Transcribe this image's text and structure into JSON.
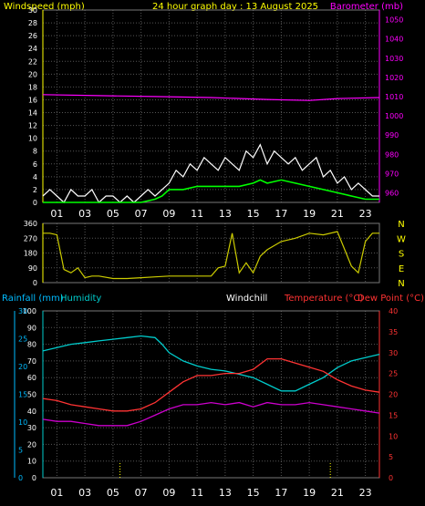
{
  "header": {
    "left_title": "Windspeed (mph)",
    "center_title": "24 hour graph day : 13 August 2025",
    "right_title": "Barometer (mb)"
  },
  "colors": {
    "windspeed": "#ffffff",
    "wind_avg": "#00ff00",
    "barometer": "#ff00ff",
    "direction": "#cccc00",
    "humidity": "#00cccc",
    "temperature": "#ff3333",
    "dewpoint": "#cc00cc",
    "rainfall_axis": "#00bbff",
    "yellow_text": "#ffff00",
    "grid": "#555555"
  },
  "chart_data": [
    {
      "type": "line",
      "id": "wind-baro",
      "x_ticks": [
        "01",
        "03",
        "05",
        "07",
        "09",
        "11",
        "13",
        "15",
        "17",
        "19",
        "21",
        "23"
      ],
      "y_left_ticks": [
        "0",
        "2",
        "4",
        "6",
        "8",
        "10",
        "12",
        "14",
        "16",
        "18",
        "20",
        "22",
        "24",
        "26",
        "28",
        "30"
      ],
      "y_left_range": [
        0,
        30
      ],
      "y_right_ticks": [
        "960",
        "970",
        "980",
        "990",
        "1000",
        "1010",
        "1020",
        "1030",
        "1040",
        "1050"
      ],
      "y_right_range": [
        955,
        1055
      ],
      "grid": true,
      "series": [
        {
          "key": "gust",
          "color_key": "windspeed",
          "x": [
            0,
            0.5,
            1,
            1.5,
            2,
            2.5,
            3,
            3.5,
            4,
            4.5,
            5,
            5.5,
            6,
            6.5,
            7,
            7.5,
            8,
            8.5,
            9,
            9.5,
            10,
            10.5,
            11,
            11.5,
            12,
            12.5,
            13,
            13.5,
            14,
            14.5,
            15,
            15.5,
            16,
            16.5,
            17,
            17.5,
            18,
            18.5,
            19,
            19.5,
            20,
            20.5,
            21,
            21.5,
            22,
            22.5,
            23,
            23.5,
            24
          ],
          "y": [
            1,
            2,
            1,
            0,
            2,
            1,
            1,
            2,
            0,
            1,
            1,
            0,
            1,
            0,
            1,
            2,
            1,
            2,
            3,
            5,
            4,
            6,
            5,
            7,
            6,
            5,
            7,
            6,
            5,
            8,
            7,
            9,
            6,
            8,
            7,
            6,
            7,
            5,
            6,
            7,
            4,
            5,
            3,
            4,
            2,
            3,
            2,
            1,
            1
          ]
        },
        {
          "key": "avg",
          "color_key": "wind_avg",
          "x": [
            0,
            1,
            2,
            3,
            4,
            5,
            6,
            7,
            8,
            8.5,
            9,
            10,
            11,
            12,
            13,
            14,
            15,
            15.5,
            16,
            17,
            18,
            19,
            20,
            21,
            22,
            23,
            24
          ],
          "y": [
            0,
            0,
            0,
            0,
            0,
            0,
            0,
            0,
            0.5,
            1,
            2,
            2,
            2.5,
            2.5,
            2.5,
            2.5,
            3,
            3.5,
            3,
            3.5,
            3,
            2.5,
            2,
            1.5,
            1,
            0.5,
            0.5
          ]
        },
        {
          "key": "barometer",
          "color_key": "barometer",
          "axis": "right",
          "x": [
            0,
            4,
            8,
            12,
            16,
            19,
            21,
            24
          ],
          "y": [
            1011,
            1010.5,
            1010,
            1009.5,
            1008.5,
            1008,
            1009,
            1009.5
          ]
        }
      ]
    },
    {
      "type": "line",
      "id": "direction",
      "y_left_ticks": [
        "0",
        "90",
        "180",
        "270",
        "360"
      ],
      "y_range": [
        0,
        360
      ],
      "y_right_labels": [
        "N",
        "W",
        "S",
        "E",
        "N"
      ],
      "grid": true,
      "series": [
        {
          "key": "direction",
          "color_key": "direction",
          "x": [
            0,
            0.5,
            1,
            1.5,
            2,
            2.5,
            3,
            3.5,
            4,
            5,
            6,
            7,
            8,
            9,
            10,
            11,
            12,
            12.5,
            13,
            13.5,
            14,
            14.5,
            15,
            15.5,
            16,
            17,
            18,
            19,
            20,
            21,
            22,
            22.5,
            23,
            23.5,
            24
          ],
          "y": [
            300,
            300,
            290,
            80,
            60,
            90,
            30,
            40,
            40,
            25,
            25,
            30,
            35,
            40,
            40,
            40,
            40,
            90,
            100,
            300,
            60,
            120,
            60,
            160,
            200,
            250,
            270,
            300,
            290,
            310,
            100,
            60,
            250,
            300,
            300
          ]
        }
      ]
    },
    {
      "type": "line",
      "id": "temp-hum",
      "legend": {
        "rainfall": "Rainfall (mm)",
        "humidity": "Humidity",
        "windchill": "Windchill",
        "temperature": "Temperature (°C)",
        "dewpoint": "Dew Point (°C)"
      },
      "x_ticks": [
        "01",
        "03",
        "05",
        "07",
        "09",
        "11",
        "13",
        "15",
        "17",
        "19",
        "21",
        "23"
      ],
      "y_humidity_ticks": [
        "0",
        "10",
        "20",
        "30",
        "40",
        "50",
        "60",
        "70",
        "80",
        "90",
        "100"
      ],
      "y_humidity_range": [
        0,
        100
      ],
      "y_rain_ticks": [
        "0",
        "5",
        "10",
        "15",
        "20",
        "25",
        "30"
      ],
      "y_rain_range": [
        0,
        30
      ],
      "y_temp_ticks": [
        "0",
        "5",
        "10",
        "15",
        "20",
        "25",
        "30",
        "35",
        "40"
      ],
      "y_temp_range": [
        0,
        40
      ],
      "grid": true,
      "series": [
        {
          "key": "humidity",
          "color_key": "humidity",
          "axis": "humidity",
          "x": [
            0,
            1,
            2,
            3,
            4,
            5,
            6,
            7,
            8,
            8.5,
            9,
            10,
            11,
            12,
            13,
            14,
            15,
            16,
            17,
            18,
            19,
            20,
            21,
            22,
            23,
            24
          ],
          "y": [
            76,
            78,
            80,
            81,
            82,
            83,
            84,
            85,
            84,
            80,
            75,
            70,
            67,
            65,
            64,
            62,
            60,
            56,
            52,
            52,
            56,
            60,
            66,
            70,
            72,
            74
          ]
        },
        {
          "key": "temperature",
          "color_key": "temperature",
          "axis": "temp",
          "x": [
            0,
            1,
            2,
            3,
            4,
            5,
            6,
            7,
            8,
            9,
            10,
            11,
            12,
            13,
            14,
            15,
            16,
            17,
            18,
            19,
            20,
            21,
            22,
            23,
            24
          ],
          "y": [
            19,
            18.5,
            17.5,
            17,
            16.5,
            16,
            16,
            16.5,
            18,
            20.5,
            23,
            24.5,
            24.5,
            25,
            25,
            26,
            28.5,
            28.5,
            27.5,
            26.5,
            25.5,
            23.5,
            22,
            21,
            20.5
          ]
        },
        {
          "key": "dewpoint",
          "color_key": "dewpoint",
          "axis": "temp",
          "x": [
            0,
            1,
            2,
            3,
            4,
            5,
            6,
            7,
            8,
            9,
            10,
            11,
            12,
            13,
            14,
            15,
            16,
            17,
            18,
            19,
            20,
            21,
            22,
            23,
            24
          ],
          "y": [
            14,
            13.5,
            13.5,
            13,
            12.5,
            12.5,
            12.5,
            13.5,
            15,
            16.5,
            17.5,
            17.5,
            18,
            17.5,
            18,
            17,
            18,
            17.5,
            17.5,
            18,
            17.5,
            17,
            16.5,
            16,
            15.5
          ]
        },
        {
          "key": "rain_marks",
          "color_key": "yellow_text",
          "axis": "rain",
          "x": [
            5.5,
            20.5
          ],
          "y": [
            3,
            3
          ]
        }
      ]
    }
  ]
}
